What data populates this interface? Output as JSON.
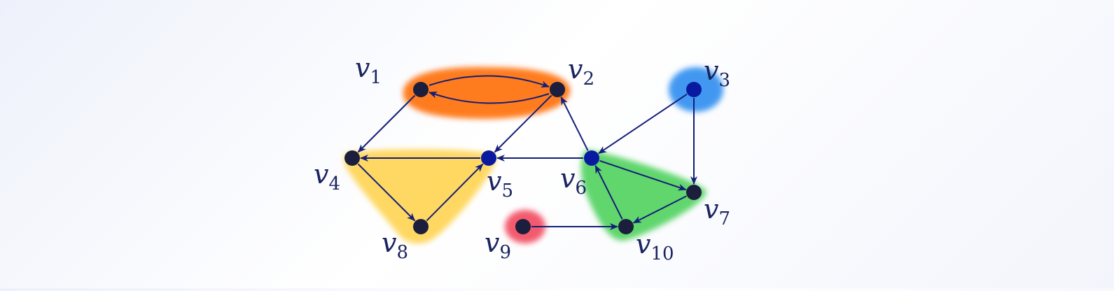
{
  "colors": {
    "edge": "#131e78",
    "vertex_dark": "#1b1e3c",
    "vertex_blue": "#0a1aa0",
    "orange": "#ff6a00",
    "yellow": "#ffd34d",
    "green": "#4cd15a",
    "blue": "#2f8ef0",
    "red": "#f24a5e"
  },
  "vertices": [
    {
      "id": "v1",
      "letter": "v",
      "index": "1",
      "fill": "dark"
    },
    {
      "id": "v2",
      "letter": "v",
      "index": "2",
      "fill": "dark"
    },
    {
      "id": "v3",
      "letter": "v",
      "index": "3",
      "fill": "blue"
    },
    {
      "id": "v4",
      "letter": "v",
      "index": "4",
      "fill": "dark"
    },
    {
      "id": "v5",
      "letter": "v",
      "index": "5",
      "fill": "blue"
    },
    {
      "id": "v6",
      "letter": "v",
      "index": "6",
      "fill": "blue"
    },
    {
      "id": "v7",
      "letter": "v",
      "index": "7",
      "fill": "dark"
    },
    {
      "id": "v8",
      "letter": "v",
      "index": "8",
      "fill": "dark"
    },
    {
      "id": "v9",
      "letter": "v",
      "index": "9",
      "fill": "dark"
    },
    {
      "id": "v10",
      "letter": "v",
      "index": "10",
      "fill": "dark"
    }
  ],
  "edges": [
    {
      "from": "v1",
      "to": "v2"
    },
    {
      "from": "v2",
      "to": "v1"
    },
    {
      "from": "v1",
      "to": "v4"
    },
    {
      "from": "v2",
      "to": "v5"
    },
    {
      "from": "v5",
      "to": "v4"
    },
    {
      "from": "v4",
      "to": "v8"
    },
    {
      "from": "v8",
      "to": "v5"
    },
    {
      "from": "v6",
      "to": "v5"
    },
    {
      "from": "v6",
      "to": "v2"
    },
    {
      "from": "v3",
      "to": "v6"
    },
    {
      "from": "v3",
      "to": "v7"
    },
    {
      "from": "v6",
      "to": "v7"
    },
    {
      "from": "v7",
      "to": "v10"
    },
    {
      "from": "v10",
      "to": "v6"
    },
    {
      "from": "v9",
      "to": "v10"
    }
  ],
  "components": [
    {
      "name": "orange",
      "members": [
        "v1",
        "v2"
      ]
    },
    {
      "name": "blue",
      "members": [
        "v3"
      ]
    },
    {
      "name": "yellow",
      "members": [
        "v4",
        "v5",
        "v8"
      ]
    },
    {
      "name": "green",
      "members": [
        "v6",
        "v7",
        "v10"
      ]
    },
    {
      "name": "red",
      "members": [
        "v9"
      ]
    }
  ]
}
